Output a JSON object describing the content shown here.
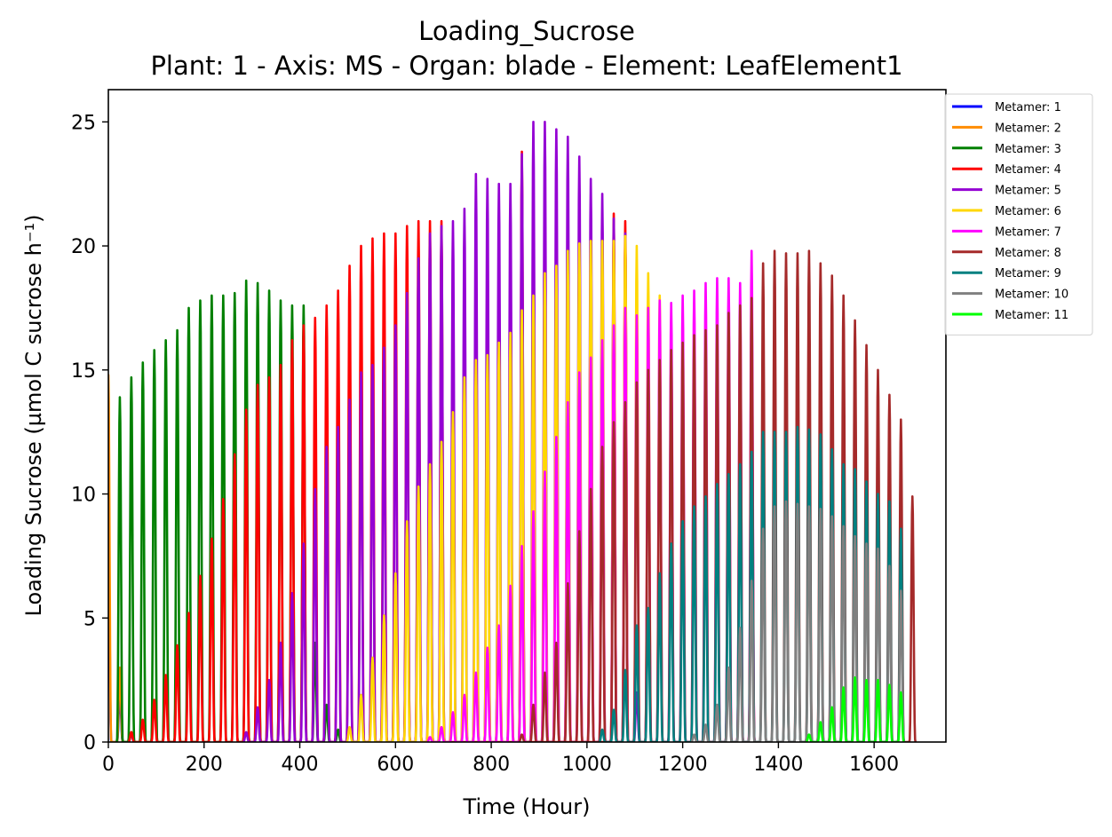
{
  "chart_data": {
    "type": "line",
    "title": "Loading_Sucrose",
    "subtitle": "Plant: 1 - Axis: MS - Organ: blade - Element: LeafElement1",
    "xlabel": "Time (Hour)",
    "ylabel": "Loading Sucrose (µmol C sucrose h⁻¹)",
    "xlim": [
      0,
      1750
    ],
    "ylim": [
      0,
      26.3
    ],
    "x_ticks": [
      "0",
      "200",
      "400",
      "600",
      "800",
      "1000",
      "1200",
      "1400",
      "1600"
    ],
    "y_ticks": [
      "0",
      "5",
      "10",
      "15",
      "20",
      "25"
    ],
    "x_tick_values": [
      0,
      200,
      400,
      600,
      800,
      1000,
      1200,
      1400,
      1600
    ],
    "y_tick_values": [
      0,
      5,
      10,
      15,
      20,
      25
    ],
    "grid": false,
    "legend_position": "outside-top-right",
    "series": [
      {
        "name": "Metamer: 1",
        "color": "#0000ff",
        "peaks": [
          [
            0,
            9.8
          ],
          [
            24,
            2.0
          ],
          [
            48,
            0.3
          ]
        ]
      },
      {
        "name": "Metamer: 2",
        "color": "#ff8c00",
        "peaks": [
          [
            0,
            14.8
          ],
          [
            24,
            3.0
          ],
          [
            48,
            0.4
          ]
        ]
      },
      {
        "name": "Metamer: 3",
        "color": "#008000",
        "peaks": [
          [
            24,
            13.9
          ],
          [
            48,
            14.7
          ],
          [
            72,
            15.3
          ],
          [
            96,
            15.8
          ],
          [
            120,
            16.2
          ],
          [
            144,
            16.6
          ],
          [
            168,
            17.5
          ],
          [
            192,
            17.8
          ],
          [
            216,
            18.0
          ],
          [
            240,
            18.0
          ],
          [
            264,
            18.1
          ],
          [
            288,
            18.6
          ],
          [
            312,
            18.5
          ],
          [
            336,
            18.2
          ],
          [
            360,
            17.8
          ],
          [
            384,
            17.6
          ],
          [
            408,
            17.6
          ],
          [
            432,
            4.0
          ],
          [
            456,
            1.5
          ],
          [
            480,
            0.5
          ]
        ]
      },
      {
        "name": "Metamer: 4",
        "color": "#ff0000",
        "peaks": [
          [
            48,
            0.4
          ],
          [
            72,
            0.9
          ],
          [
            96,
            1.7
          ],
          [
            120,
            2.7
          ],
          [
            144,
            3.9
          ],
          [
            168,
            5.2
          ],
          [
            192,
            6.7
          ],
          [
            216,
            8.2
          ],
          [
            240,
            9.8
          ],
          [
            264,
            11.6
          ],
          [
            288,
            13.4
          ],
          [
            312,
            14.4
          ],
          [
            336,
            14.7
          ],
          [
            360,
            15.2
          ],
          [
            384,
            16.2
          ],
          [
            408,
            16.8
          ],
          [
            432,
            17.1
          ],
          [
            456,
            17.6
          ],
          [
            480,
            18.2
          ],
          [
            504,
            19.2
          ],
          [
            528,
            20.0
          ],
          [
            552,
            20.3
          ],
          [
            576,
            20.5
          ],
          [
            600,
            20.5
          ],
          [
            624,
            20.8
          ],
          [
            648,
            21.0
          ],
          [
            672,
            21.0
          ],
          [
            696,
            21.0
          ],
          [
            864,
            23.8
          ],
          [
            1056,
            21.3
          ],
          [
            1080,
            21.0
          ]
        ]
      },
      {
        "name": "Metamer: 5",
        "color": "#9400d3",
        "peaks": [
          [
            288,
            0.4
          ],
          [
            312,
            1.4
          ],
          [
            336,
            2.5
          ],
          [
            360,
            4.0
          ],
          [
            384,
            6.0
          ],
          [
            408,
            8.0
          ],
          [
            432,
            10.2
          ],
          [
            456,
            11.9
          ],
          [
            480,
            12.7
          ],
          [
            504,
            13.8
          ],
          [
            528,
            14.9
          ],
          [
            552,
            15.2
          ],
          [
            576,
            15.9
          ],
          [
            600,
            16.8
          ],
          [
            624,
            18.1
          ],
          [
            648,
            19.5
          ],
          [
            672,
            20.5
          ],
          [
            696,
            20.8
          ],
          [
            720,
            21.0
          ],
          [
            744,
            21.5
          ],
          [
            768,
            22.9
          ],
          [
            792,
            22.7
          ],
          [
            816,
            22.5
          ],
          [
            840,
            22.5
          ],
          [
            864,
            23.7
          ],
          [
            888,
            25.0
          ],
          [
            912,
            25.0
          ],
          [
            936,
            24.7
          ],
          [
            960,
            24.4
          ],
          [
            984,
            23.6
          ],
          [
            1008,
            22.7
          ],
          [
            1032,
            22.1
          ],
          [
            1056,
            21.1
          ],
          [
            1080,
            20.5
          ],
          [
            1104,
            2.0
          ]
        ]
      },
      {
        "name": "Metamer: 6",
        "color": "#ffd700",
        "peaks": [
          [
            504,
            0.6
          ],
          [
            528,
            1.9
          ],
          [
            552,
            3.4
          ],
          [
            576,
            5.1
          ],
          [
            600,
            6.8
          ],
          [
            624,
            8.9
          ],
          [
            648,
            10.3
          ],
          [
            672,
            11.2
          ],
          [
            696,
            12.1
          ],
          [
            720,
            13.3
          ],
          [
            744,
            14.7
          ],
          [
            768,
            15.4
          ],
          [
            792,
            15.6
          ],
          [
            816,
            16.1
          ],
          [
            840,
            16.5
          ],
          [
            864,
            17.4
          ],
          [
            888,
            18.0
          ],
          [
            912,
            18.9
          ],
          [
            936,
            19.2
          ],
          [
            960,
            19.8
          ],
          [
            984,
            20.1
          ],
          [
            1008,
            20.2
          ],
          [
            1032,
            20.2
          ],
          [
            1056,
            20.2
          ],
          [
            1080,
            20.4
          ],
          [
            1104,
            20.0
          ],
          [
            1128,
            18.9
          ],
          [
            1152,
            18.0
          ]
        ]
      },
      {
        "name": "Metamer: 7",
        "color": "#ff00ff",
        "peaks": [
          [
            672,
            0.2
          ],
          [
            696,
            0.6
          ],
          [
            720,
            1.2
          ],
          [
            744,
            1.9
          ],
          [
            768,
            2.8
          ],
          [
            792,
            3.8
          ],
          [
            816,
            4.7
          ],
          [
            840,
            6.3
          ],
          [
            864,
            7.9
          ],
          [
            888,
            9.3
          ],
          [
            912,
            10.9
          ],
          [
            936,
            12.3
          ],
          [
            960,
            13.7
          ],
          [
            984,
            14.9
          ],
          [
            1008,
            15.5
          ],
          [
            1032,
            16.2
          ],
          [
            1056,
            16.8
          ],
          [
            1080,
            17.5
          ],
          [
            1104,
            17.2
          ],
          [
            1128,
            17.5
          ],
          [
            1152,
            17.8
          ],
          [
            1176,
            17.7
          ],
          [
            1200,
            18.0
          ],
          [
            1224,
            18.2
          ],
          [
            1248,
            18.5
          ],
          [
            1272,
            18.7
          ],
          [
            1296,
            18.7
          ],
          [
            1320,
            18.5
          ],
          [
            1344,
            19.8
          ]
        ]
      },
      {
        "name": "Metamer: 8",
        "color": "#a52a2a",
        "peaks": [
          [
            864,
            0.3
          ],
          [
            888,
            1.5
          ],
          [
            912,
            2.8
          ],
          [
            936,
            4.0
          ],
          [
            960,
            6.4
          ],
          [
            984,
            8.5
          ],
          [
            1008,
            10.2
          ],
          [
            1032,
            11.9
          ],
          [
            1056,
            12.9
          ],
          [
            1080,
            13.7
          ],
          [
            1104,
            14.5
          ],
          [
            1128,
            15.0
          ],
          [
            1152,
            15.4
          ],
          [
            1176,
            15.8
          ],
          [
            1200,
            16.1
          ],
          [
            1224,
            16.4
          ],
          [
            1248,
            16.6
          ],
          [
            1272,
            16.8
          ],
          [
            1296,
            17.3
          ],
          [
            1320,
            17.6
          ],
          [
            1344,
            17.9
          ],
          [
            1368,
            19.3
          ],
          [
            1392,
            19.8
          ],
          [
            1416,
            19.7
          ],
          [
            1440,
            19.7
          ],
          [
            1464,
            19.8
          ],
          [
            1488,
            19.3
          ],
          [
            1512,
            18.8
          ],
          [
            1536,
            18.0
          ],
          [
            1560,
            17.0
          ],
          [
            1584,
            16.0
          ],
          [
            1608,
            15.0
          ],
          [
            1632,
            14.0
          ],
          [
            1656,
            13.0
          ],
          [
            1680,
            9.9
          ]
        ]
      },
      {
        "name": "Metamer: 9",
        "color": "#008080",
        "peaks": [
          [
            1032,
            0.5
          ],
          [
            1056,
            1.3
          ],
          [
            1080,
            2.9
          ],
          [
            1104,
            4.7
          ],
          [
            1128,
            5.4
          ],
          [
            1152,
            6.8
          ],
          [
            1176,
            8.0
          ],
          [
            1200,
            8.9
          ],
          [
            1224,
            9.5
          ],
          [
            1248,
            9.9
          ],
          [
            1272,
            10.4
          ],
          [
            1296,
            10.8
          ],
          [
            1320,
            11.2
          ],
          [
            1344,
            11.7
          ],
          [
            1368,
            12.5
          ],
          [
            1392,
            12.5
          ],
          [
            1416,
            12.5
          ],
          [
            1440,
            12.7
          ],
          [
            1464,
            12.6
          ],
          [
            1488,
            12.4
          ],
          [
            1512,
            11.8
          ],
          [
            1536,
            11.2
          ],
          [
            1560,
            11.0
          ],
          [
            1584,
            10.5
          ],
          [
            1608,
            10.0
          ],
          [
            1632,
            9.7
          ],
          [
            1656,
            8.6
          ]
        ]
      },
      {
        "name": "Metamer: 10",
        "color": "#808080",
        "peaks": [
          [
            1224,
            0.3
          ],
          [
            1248,
            0.7
          ],
          [
            1272,
            1.5
          ],
          [
            1296,
            3.0
          ],
          [
            1320,
            4.6
          ],
          [
            1344,
            6.5
          ],
          [
            1368,
            8.6
          ],
          [
            1392,
            9.5
          ],
          [
            1416,
            9.7
          ],
          [
            1440,
            9.6
          ],
          [
            1464,
            9.5
          ],
          [
            1488,
            9.4
          ],
          [
            1512,
            9.1
          ],
          [
            1536,
            8.7
          ],
          [
            1560,
            8.3
          ],
          [
            1584,
            8.0
          ],
          [
            1608,
            7.8
          ],
          [
            1632,
            7.1
          ],
          [
            1656,
            6.1
          ]
        ]
      },
      {
        "name": "Metamer: 11",
        "color": "#00ff00",
        "peaks": [
          [
            1464,
            0.3
          ],
          [
            1488,
            0.8
          ],
          [
            1512,
            1.4
          ],
          [
            1536,
            2.2
          ],
          [
            1560,
            2.6
          ],
          [
            1584,
            2.5
          ],
          [
            1608,
            2.5
          ],
          [
            1632,
            2.3
          ],
          [
            1656,
            2.0
          ]
        ]
      }
    ]
  }
}
